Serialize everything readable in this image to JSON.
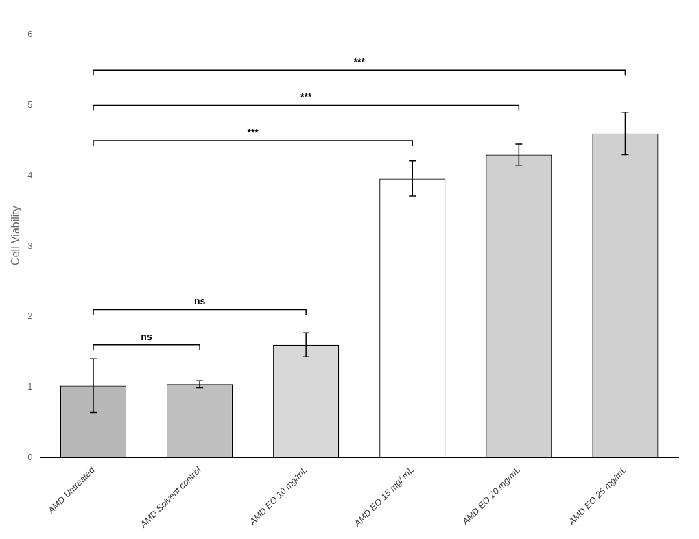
{
  "chart_data": {
    "type": "bar",
    "categories": [
      "AMD Untreated",
      "AMD Solvent control",
      "AMD EO 10 mg/mL",
      "AMD EO 15 mg/ mL",
      "AMD EO 20 mg/mL",
      "AMD EO 25 mg/mL"
    ],
    "values": [
      1.02,
      1.04,
      1.6,
      3.96,
      4.3,
      4.6
    ],
    "errors": [
      0.38,
      0.05,
      0.17,
      0.25,
      0.15,
      0.3
    ],
    "colors": [
      "#b8b8b8",
      "#c0c0c0",
      "#d8d8d8",
      "#ffffff",
      "#d0d0d0",
      "#d0d0d0"
    ],
    "ylabel": "Cell Viability",
    "ylim": [
      0,
      6.3
    ],
    "yticks": [
      0,
      1,
      2,
      3,
      4,
      5,
      6
    ],
    "grid": false,
    "annotations": [
      {
        "label": "***",
        "x1": "AMD Untreated",
        "x2": "AMD EO 15 mg/ mL",
        "y": 4.5
      },
      {
        "label": "***",
        "x1": "AMD Untreated",
        "x2": "AMD EO 20 mg/mL",
        "y": 5.0
      },
      {
        "label": "***",
        "x1": "AMD Untreated",
        "x2": "AMD EO 25 mg/mL",
        "y": 5.5
      },
      {
        "label": "ns",
        "x1": "AMD Untreated",
        "x2": "AMD Solvent control",
        "y": 1.6
      },
      {
        "label": "ns",
        "x1": "AMD Untreated",
        "x2": "AMD EO 10 mg/mL",
        "y": 2.1
      }
    ]
  }
}
